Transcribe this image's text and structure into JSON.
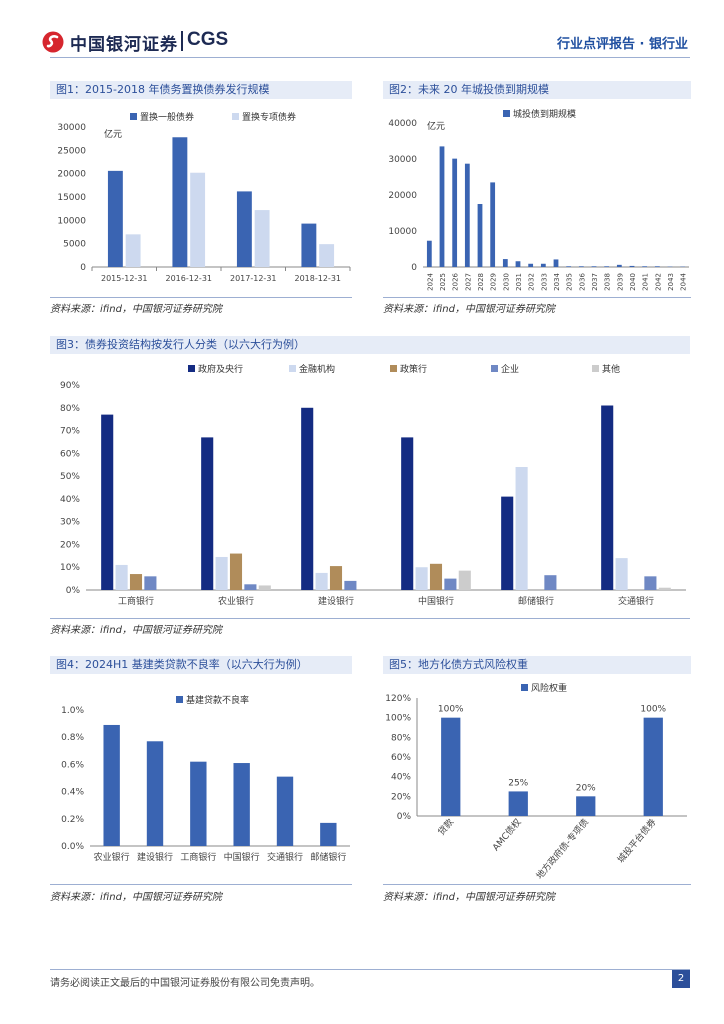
{
  "header": {
    "logo_cn": "中国银河证券",
    "logo_en": "CGS",
    "report_type": "行业点评报告 · 银行业"
  },
  "figures": [
    {
      "title": "图1：2015-2018 年债务置换债券发行规模",
      "source": "资料来源：ifind，中国银河证券研究院",
      "chart_data": {
        "type": "bar",
        "categories": [
          "2015-12-31",
          "2016-12-31",
          "2017-12-31",
          "2018-12-31"
        ],
        "series": [
          {
            "name": "置换一般债券",
            "color": "#3a64b2",
            "values": [
              20600,
              27800,
              16200,
              9300
            ]
          },
          {
            "name": "置换专项债券",
            "color": "#cdd9ef",
            "values": [
              7000,
              20200,
              12200,
              4900
            ]
          }
        ],
        "unit": "亿元",
        "ylim": [
          0,
          30000
        ],
        "yticks": [
          0,
          5000,
          10000,
          15000,
          20000,
          25000,
          30000
        ],
        "ytick_labels": [
          "0",
          "5000",
          "10000",
          "15000",
          "20000",
          "25000",
          "30000"
        ]
      }
    },
    {
      "title": "图2：未来 20 年城投债到期规模",
      "source": "资料来源：ifind，中国银河证券研究院",
      "chart_data": {
        "type": "bar",
        "categories": [
          "2024",
          "2025",
          "2026",
          "2027",
          "2028",
          "2029",
          "2030",
          "2031",
          "2032",
          "2033",
          "2034",
          "2035",
          "2036",
          "2037",
          "2038",
          "2039",
          "2040",
          "2041",
          "2042",
          "2043",
          "2044"
        ],
        "series": [
          {
            "name": "城投债到期规模",
            "color": "#3a64b2",
            "values": [
              7300,
              33500,
              30100,
              28700,
              17500,
              23500,
              2200,
              1600,
              900,
              900,
              2100,
              200,
              200,
              200,
              200,
              600,
              300,
              200,
              200,
              100,
              100
            ]
          }
        ],
        "unit": "亿元",
        "ylim": [
          0,
          40000
        ],
        "yticks": [
          0,
          10000,
          20000,
          30000,
          40000
        ],
        "ytick_labels": [
          "0",
          "10000",
          "20000",
          "30000",
          "40000"
        ]
      }
    },
    {
      "title": "图3：债券投资结构按发行人分类（以六大行为例）",
      "source": "资料来源：ifind，中国银河证券研究院",
      "chart_data": {
        "type": "bar",
        "categories": [
          "工商银行",
          "农业银行",
          "建设银行",
          "中国银行",
          "邮储银行",
          "交通银行"
        ],
        "series": [
          {
            "name": "政府及央行",
            "color": "#142b82",
            "values": [
              77,
              67,
              80,
              67,
              41,
              81
            ]
          },
          {
            "name": "金融机构",
            "color": "#cdd9ef",
            "values": [
              11,
              14.5,
              7.5,
              10,
              54,
              14
            ]
          },
          {
            "name": "政策行",
            "color": "#b08c5a",
            "values": [
              7,
              16,
              10.5,
              11.5,
              0,
              0
            ]
          },
          {
            "name": "企业",
            "color": "#6f88c4",
            "values": [
              6,
              2.5,
              4,
              5,
              6.5,
              6
            ]
          },
          {
            "name": "其他",
            "color": "#cccccc",
            "values": [
              0,
              2,
              0,
              8.5,
              0,
              1
            ]
          }
        ],
        "ylim": [
          0,
          90
        ],
        "yticks": [
          0,
          10,
          20,
          30,
          40,
          50,
          60,
          70,
          80,
          90
        ],
        "ytick_labels": [
          "0%",
          "10%",
          "20%",
          "30%",
          "40%",
          "50%",
          "60%",
          "70%",
          "80%",
          "90%"
        ]
      }
    },
    {
      "title": "图4：2024H1 基建类贷款不良率（以六大行为例）",
      "source": "资料来源：ifind，中国银河证券研究院",
      "chart_data": {
        "type": "bar",
        "categories": [
          "农业银行",
          "建设银行",
          "工商银行",
          "中国银行",
          "交通银行",
          "邮储银行"
        ],
        "series": [
          {
            "name": "基建贷款不良率",
            "color": "#3a64b2",
            "values": [
              0.89,
              0.77,
              0.62,
              0.61,
              0.51,
              0.17
            ]
          }
        ],
        "ylim": [
          0,
          1.0
        ],
        "yticks": [
          0,
          0.2,
          0.4,
          0.6,
          0.8,
          1.0
        ],
        "ytick_labels": [
          "0.0%",
          "0.2%",
          "0.4%",
          "0.6%",
          "0.8%",
          "1.0%"
        ]
      }
    },
    {
      "title": "图5：地方化债方式风险权重",
      "source": "资料来源：ifind，中国银河证券研究院",
      "chart_data": {
        "type": "bar",
        "categories": [
          "贷款",
          "AMC债权",
          "地方政府债-专项债",
          "城投平台债券"
        ],
        "series": [
          {
            "name": "风险权重",
            "color": "#3a64b2",
            "values": [
              100,
              25,
              20,
              100
            ]
          }
        ],
        "data_labels": [
          "100%",
          "25%",
          "20%",
          "100%"
        ],
        "ylim": [
          0,
          120
        ],
        "yticks": [
          0,
          20,
          40,
          60,
          80,
          100,
          120
        ],
        "ytick_labels": [
          "0%",
          "20%",
          "40%",
          "60%",
          "80%",
          "100%",
          "120%"
        ]
      }
    }
  ],
  "footer": {
    "disclaimer": "请务必阅读正文最后的中国银河证券股份有限公司免责声明。",
    "page": "2"
  }
}
